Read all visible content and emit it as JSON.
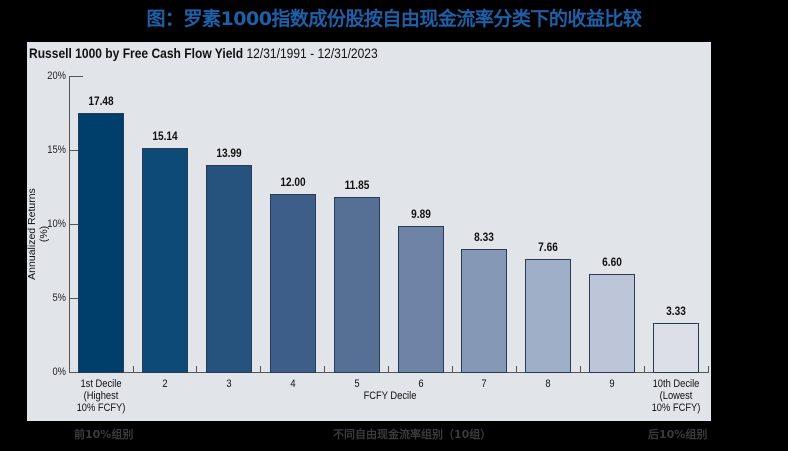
{
  "title": "图：罗素1000指数成份股按自由现金流率分类下的收益比较",
  "chart_header": {
    "bold": "Russell 1000 by Free Cash Flow Yield",
    "period": "12/31/1991 - 12/31/2023"
  },
  "footer": {
    "left": "前10%组别",
    "center": "不同自由现金流率组别（10组）",
    "right": "后10%组别"
  },
  "chart_data": {
    "type": "bar",
    "title": "Russell 1000 by Free Cash Flow Yield 12/31/1991 - 12/31/2023",
    "xlabel": "FCFY Decile",
    "ylabel": "Annualized Returns (%)",
    "ylim": [
      0,
      20
    ],
    "yticks": [
      "0%",
      "5%",
      "10%",
      "15%",
      "20%"
    ],
    "grid": false,
    "legend": "none",
    "categories": [
      "1st Decile\n(Highest\n10% FCFY)",
      "2",
      "3",
      "4",
      "5",
      "6",
      "7",
      "8",
      "9",
      "10th Decile\n(Lowest\n10% FCFY)"
    ],
    "values": [
      17.48,
      15.14,
      13.99,
      12.0,
      11.85,
      9.89,
      8.33,
      7.66,
      6.6,
      3.33
    ],
    "value_labels": [
      "17.48",
      "15.14",
      "13.99",
      "12.00",
      "11.85",
      "9.89",
      "8.33",
      "7.66",
      "6.60",
      "3.33"
    ],
    "colors": [
      "#003e6c",
      "#0d4a78",
      "#25537e",
      "#3d5e88",
      "#566f95",
      "#6e84a6",
      "#8598b5",
      "#a0afc8",
      "#bcc6d8",
      "#dcdfe8"
    ]
  }
}
